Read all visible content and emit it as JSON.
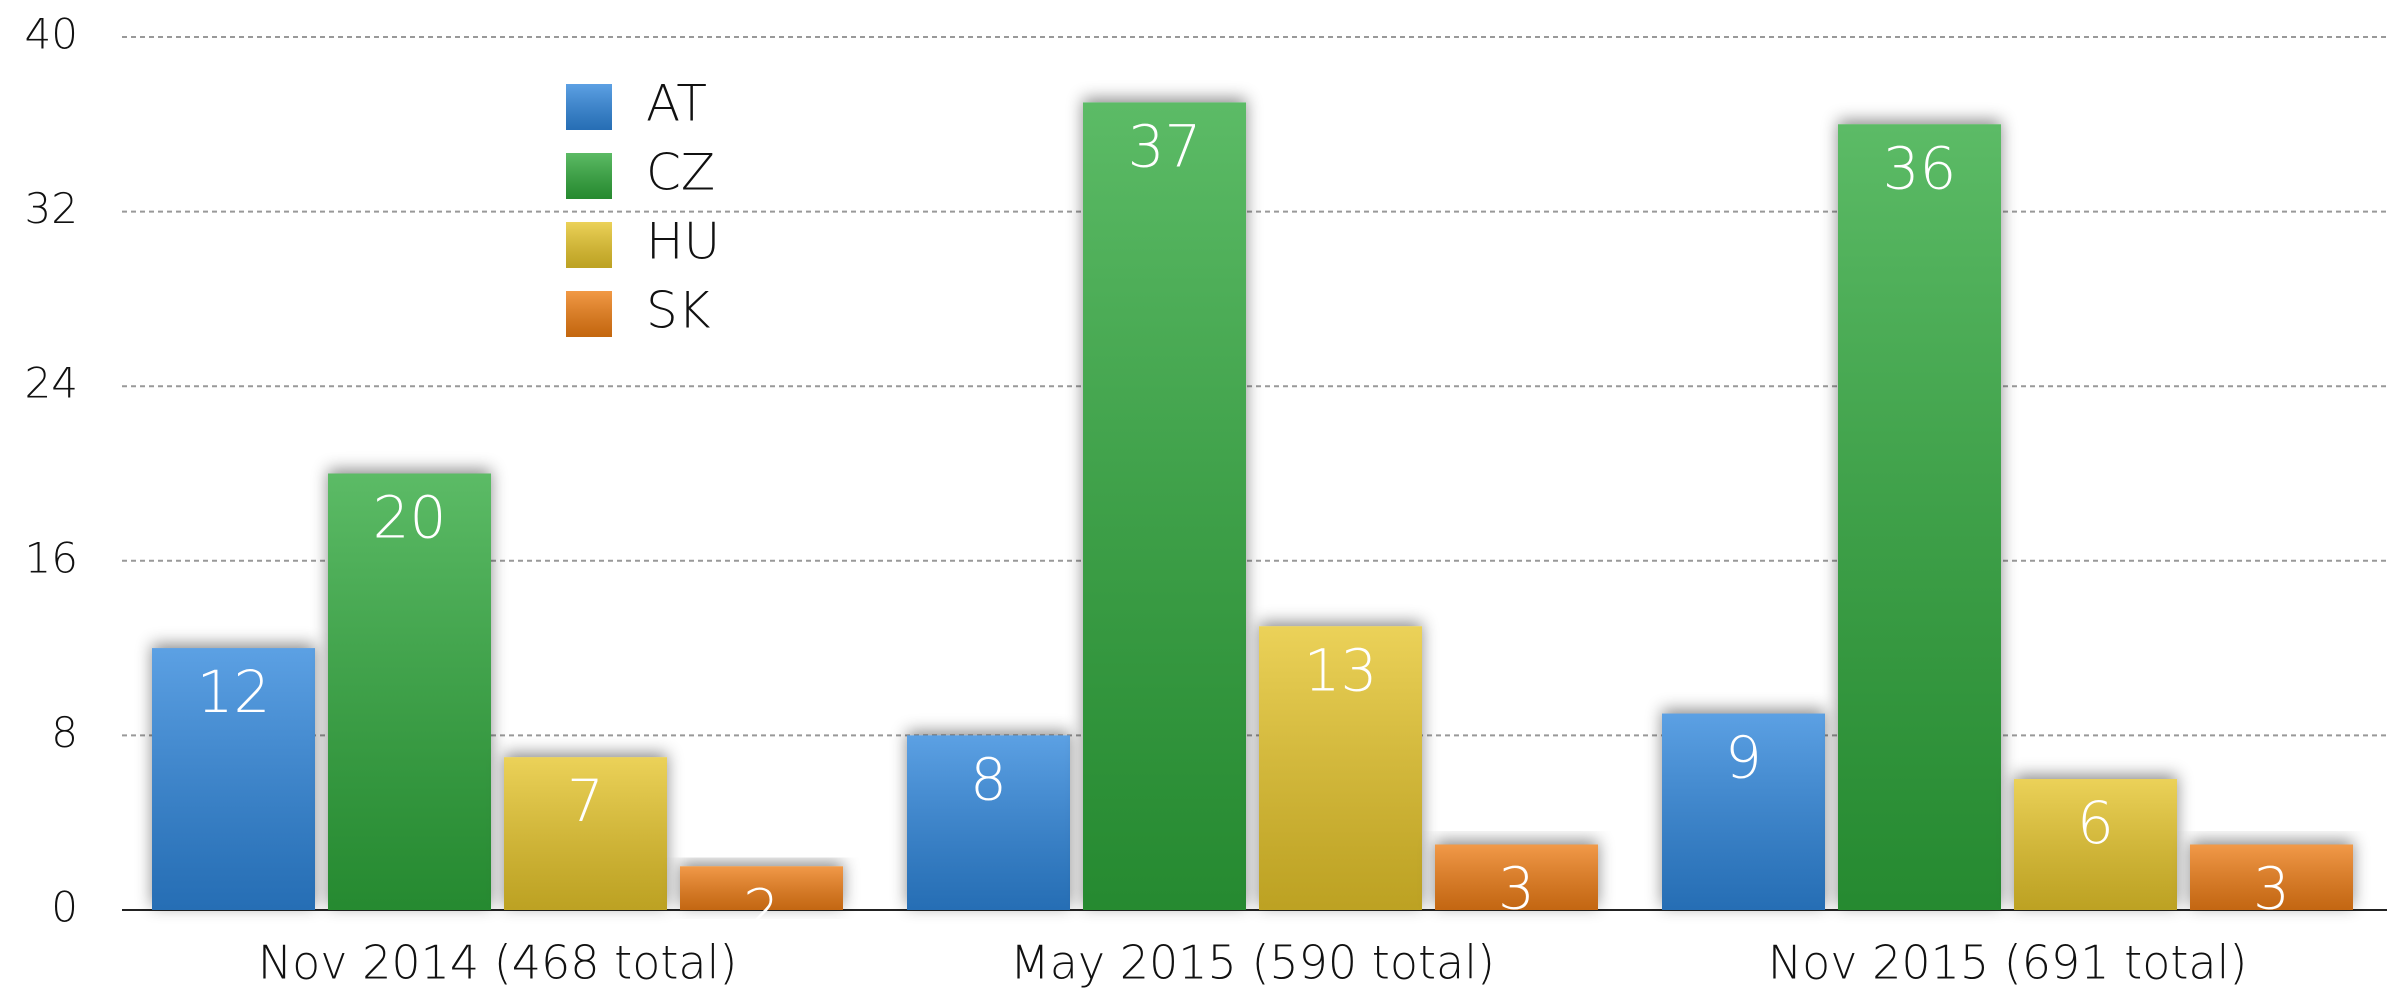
{
  "chart_data": {
    "type": "bar",
    "categories": [
      "Nov 2014 (468 total)",
      "May 2015 (590 total)",
      "Nov 2015 (691 total)"
    ],
    "series": [
      {
        "name": "AT",
        "color": "#2f86dc",
        "values": [
          12,
          8,
          9
        ]
      },
      {
        "name": "CZ",
        "color": "#2fa83a",
        "values": [
          20,
          37,
          36
        ]
      },
      {
        "name": "HU",
        "color": "#e6c52a",
        "values": [
          7,
          13,
          6
        ]
      },
      {
        "name": "SK",
        "color": "#ee7d12",
        "values": [
          2,
          3,
          3
        ]
      }
    ],
    "ylim": [
      0,
      40
    ],
    "yticks": [
      0,
      8,
      16,
      24,
      32,
      40
    ],
    "grid": true,
    "legend": "top-left"
  }
}
